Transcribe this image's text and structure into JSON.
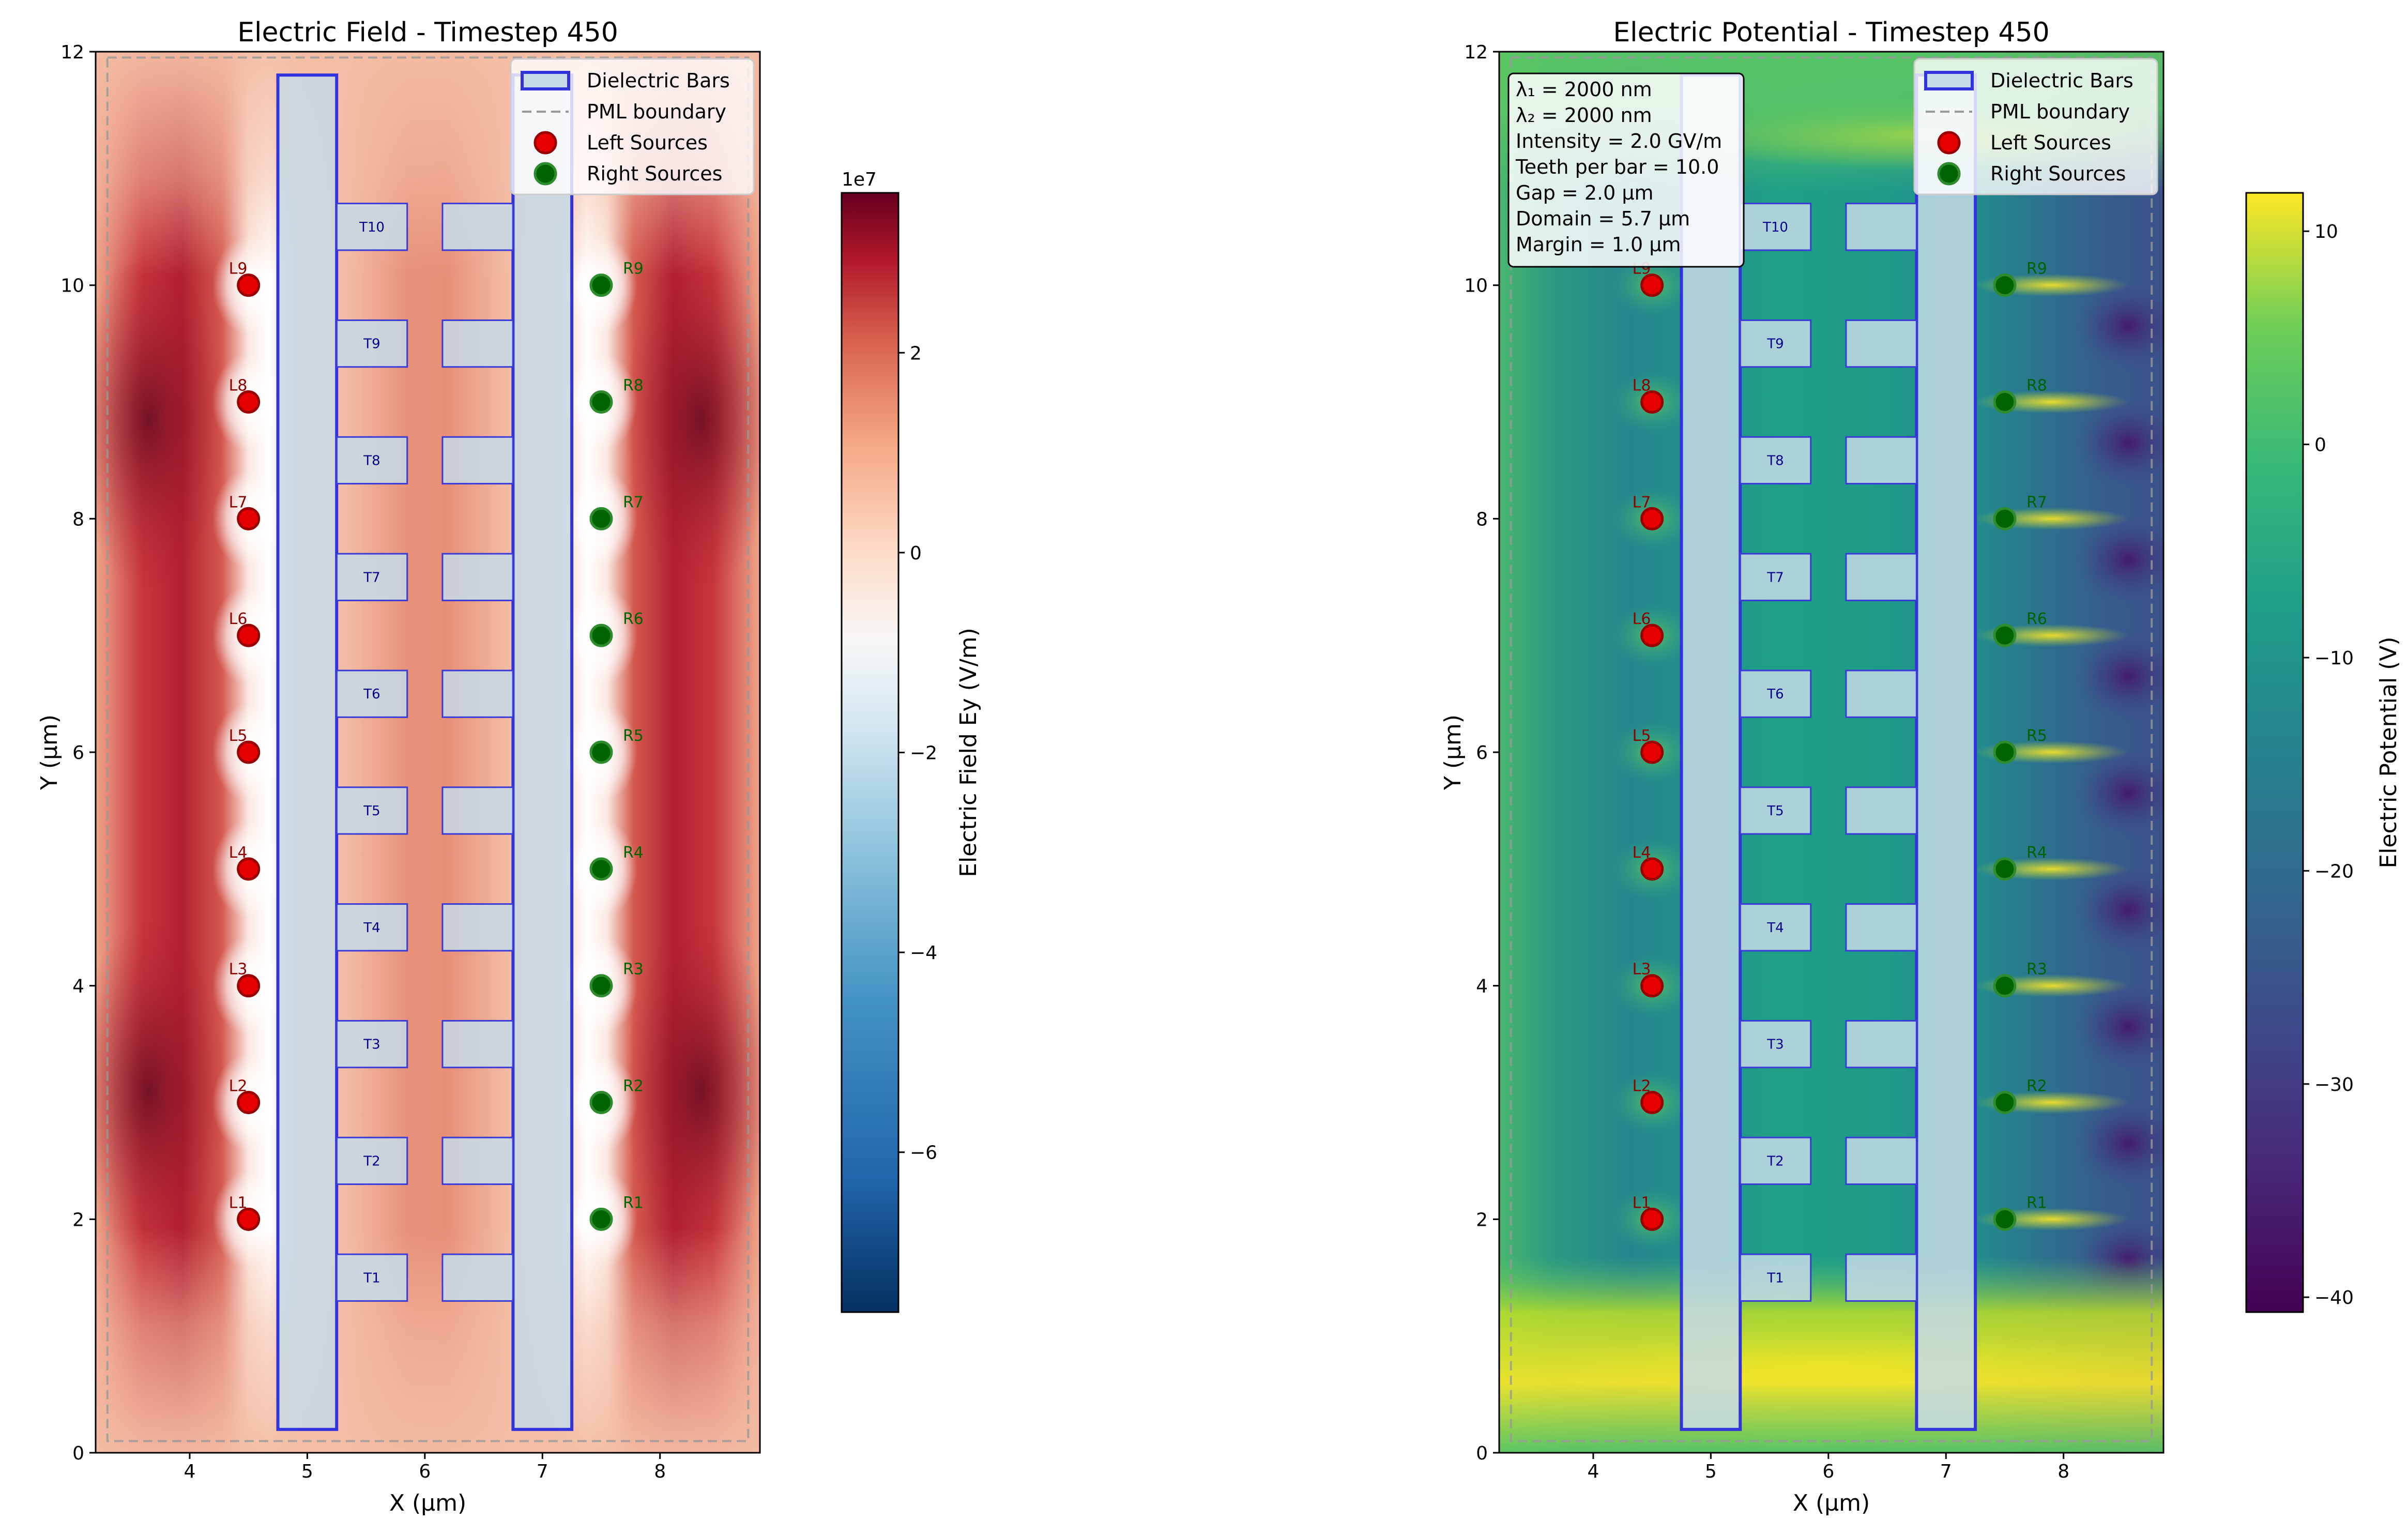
{
  "colors": {
    "bar_fill": "#c6dbe8",
    "bar_edge": "#3333dd",
    "tooth_edge": "#3a3ad8",
    "left_source": "#e60000",
    "left_source_edge": "#990000",
    "right_source": "#006400",
    "right_source_edge": "#2e8b2e",
    "left_label": "#8b0000",
    "right_label": "#006400",
    "tooth_label": "#00008b",
    "pml": "#999999"
  },
  "chart_data": [
    {
      "type": "heatmap",
      "title": "Electric Field - Timestep 450",
      "xlabel": "X (µm)",
      "ylabel": "Y (µm)",
      "xlim": [
        3.2,
        8.85
      ],
      "ylim": [
        0,
        12
      ],
      "xticks": [
        "4",
        "5",
        "6",
        "7",
        "8"
      ],
      "yticks": [
        "0",
        "2",
        "4",
        "6",
        "8",
        "10",
        "12"
      ],
      "grid": false,
      "legend": {
        "placement": "top-right",
        "entries": [
          "Dielectric Bars",
          "PML boundary",
          "Left Sources",
          "Right Sources"
        ]
      },
      "colorbar": {
        "label": "Electric Field Ey (V/m)",
        "scale_note": "1e7",
        "range": [
          -7.6,
          3.6
        ],
        "ticks": [
          "2",
          "0",
          "−2",
          "−4",
          "−6"
        ],
        "colormap": "RdBu_r"
      },
      "bars": [
        {
          "x0": 4.75,
          "x1": 5.25,
          "y0": 0.2,
          "y1": 11.8
        },
        {
          "x0": 6.75,
          "x1": 7.25,
          "y0": 0.2,
          "y1": 11.8
        }
      ],
      "teeth_labels": [
        "T1",
        "T2",
        "T3",
        "T4",
        "T5",
        "T6",
        "T7",
        "T8",
        "T9",
        "T10"
      ],
      "teeth_y": [
        1.5,
        2.5,
        3.5,
        4.5,
        5.5,
        6.5,
        7.5,
        8.5,
        9.5,
        10.5
      ],
      "left_sources": {
        "x": 4.5,
        "y": [
          2,
          3,
          4,
          5,
          6,
          7,
          8,
          9,
          10
        ],
        "labels": [
          "L1",
          "L2",
          "L3",
          "L4",
          "L5",
          "L6",
          "L7",
          "L8",
          "L9"
        ]
      },
      "right_sources": {
        "x": 7.5,
        "y": [
          2,
          3,
          4,
          5,
          6,
          7,
          8,
          9,
          10
        ],
        "labels": [
          "R1",
          "R2",
          "R3",
          "R4",
          "R5",
          "R6",
          "R7",
          "R8",
          "R9"
        ]
      }
    },
    {
      "type": "heatmap",
      "title": "Electric Potential - Timestep 450",
      "xlabel": "X (µm)",
      "ylabel": "Y (µm)",
      "xlim": [
        3.2,
        8.85
      ],
      "ylim": [
        0,
        12
      ],
      "xticks": [
        "4",
        "5",
        "6",
        "7",
        "8"
      ],
      "yticks": [
        "0",
        "2",
        "4",
        "6",
        "8",
        "10",
        "12"
      ],
      "grid": false,
      "legend": {
        "placement": "top-right",
        "entries": [
          "Dielectric Bars",
          "PML boundary",
          "Left Sources",
          "Right Sources"
        ]
      },
      "colorbar": {
        "label": "Electric Potential (V)",
        "range": [
          -40.7,
          11.8
        ],
        "ticks": [
          "10",
          "0",
          "−10",
          "−20",
          "−30",
          "−40"
        ],
        "colormap": "viridis"
      },
      "info_box": [
        "λ₁ = 2000 nm",
        "λ₂ = 2000 nm",
        "Intensity = 2.0 GV/m",
        "Teeth per bar = 10.0",
        "Gap = 2.0 µm",
        "Domain = 5.7 µm",
        "Margin = 1.0 µm"
      ],
      "bars": [
        {
          "x0": 4.75,
          "x1": 5.25,
          "y0": 0.2,
          "y1": 11.8
        },
        {
          "x0": 6.75,
          "x1": 7.25,
          "y0": 0.2,
          "y1": 11.8
        }
      ],
      "teeth_labels": [
        "T1",
        "T2",
        "T3",
        "T4",
        "T5",
        "T6",
        "T7",
        "T8",
        "T9",
        "T10"
      ],
      "teeth_y": [
        1.5,
        2.5,
        3.5,
        4.5,
        5.5,
        6.5,
        7.5,
        8.5,
        9.5,
        10.5
      ],
      "left_sources": {
        "x": 4.5,
        "y": [
          2,
          3,
          4,
          5,
          6,
          7,
          8,
          9,
          10
        ],
        "labels": [
          "L1",
          "L2",
          "L3",
          "L4",
          "L5",
          "L6",
          "L7",
          "L8",
          "L9"
        ]
      },
      "right_sources": {
        "x": 7.5,
        "y": [
          2,
          3,
          4,
          5,
          6,
          7,
          8,
          9,
          10
        ],
        "labels": [
          "R1",
          "R2",
          "R3",
          "R4",
          "R5",
          "R6",
          "R7",
          "R8",
          "R9"
        ]
      }
    }
  ]
}
